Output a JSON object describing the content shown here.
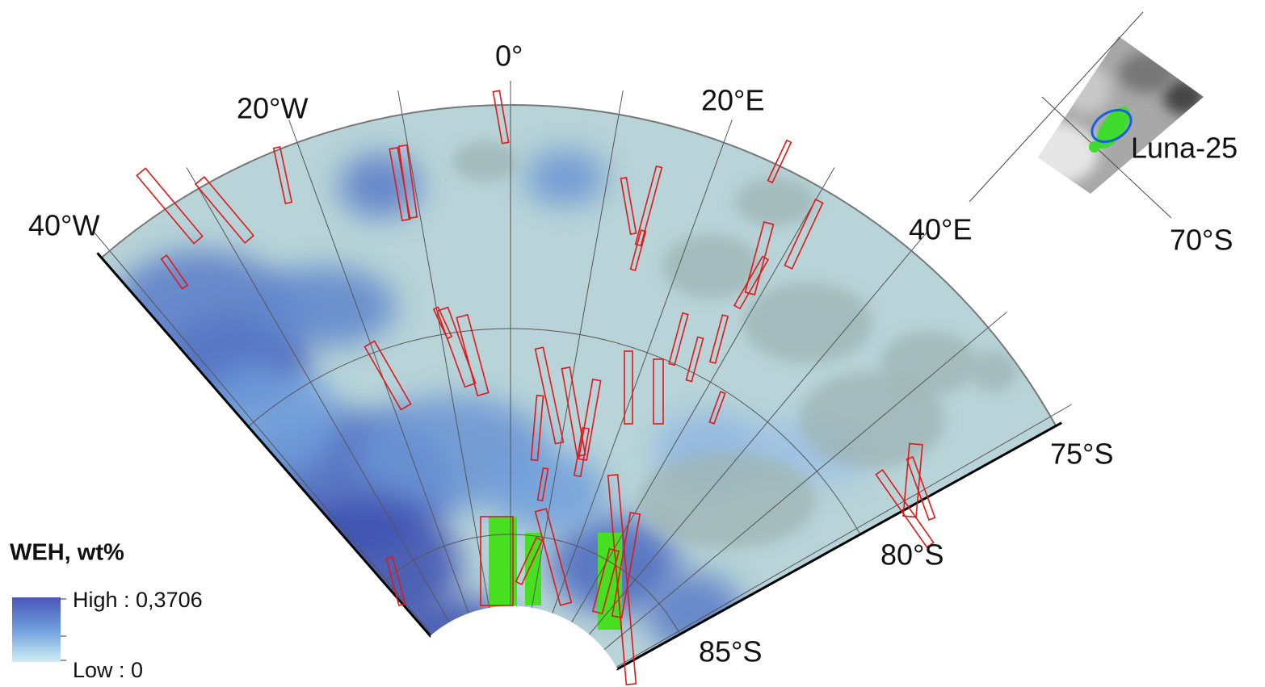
{
  "map": {
    "longitude_labels": [
      "40°W",
      "20°W",
      "0°",
      "20°E",
      "40°E"
    ],
    "latitude_labels": [
      "70°S",
      "75°S",
      "80°S",
      "85°S"
    ],
    "site_label": "Luna-25",
    "legend": {
      "title": "WEH, wt%",
      "high": "High : 0,3706",
      "low": "Low : 0"
    }
  }
}
